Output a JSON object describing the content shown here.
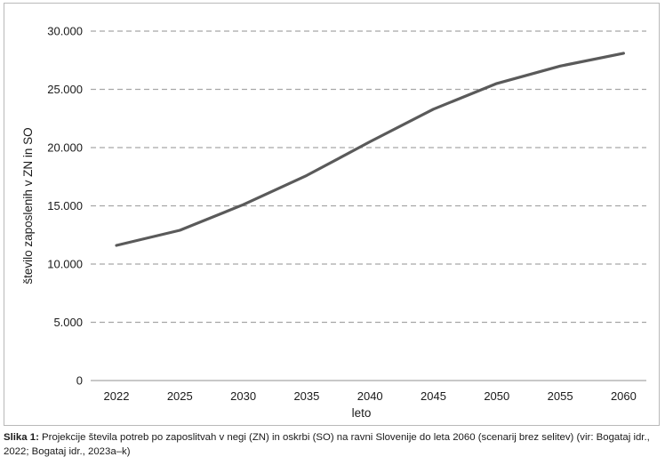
{
  "chart_data": {
    "type": "line",
    "title": "",
    "xlabel": "leto",
    "ylabel": "število zaposlenih v ZN in SO",
    "ylim": [
      0,
      30000
    ],
    "yticks": [
      0,
      5000,
      10000,
      15000,
      20000,
      25000,
      30000
    ],
    "ytick_labels": [
      "0",
      "5.000",
      "10.000",
      "15.000",
      "20.000",
      "25.000",
      "30.000"
    ],
    "categories": [
      "2022",
      "2025",
      "2030",
      "2035",
      "2040",
      "2045",
      "2050",
      "2055",
      "2060"
    ],
    "series": [
      {
        "values": [
          11600,
          12900,
          15100,
          17600,
          20500,
          23300,
          25500,
          27000,
          28100
        ]
      }
    ],
    "grid": "horizontal dashed",
    "legend": "none",
    "line_color": "#5a5a5a",
    "grid_color": "#a6a6a6"
  },
  "caption": {
    "label": "Slika 1:",
    "text": " Projekcije števila potreb po zaposlitvah v negi (ZN) in oskrbi (SO) na ravni Slovenije do leta 2060 (scenarij brez selitev) (vir: Bogataj idr., 2022; Bogataj idr., 2023a–k)"
  }
}
